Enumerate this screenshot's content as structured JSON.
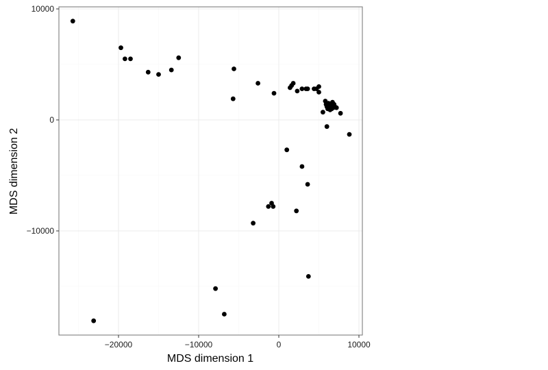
{
  "chart_data": {
    "type": "scatter",
    "title": "",
    "xlabel": "MDS dimension 1",
    "ylabel": "MDS dimension 2",
    "xlim": [
      -27000,
      10500
    ],
    "ylim": [
      -19500,
      10200
    ],
    "x_ticks": [
      -20000,
      -10000,
      0,
      10000
    ],
    "x_tick_labels": [
      "−20000",
      "−10000",
      "0",
      "10000"
    ],
    "y_ticks": [
      -10000,
      0,
      10000
    ],
    "y_tick_labels": [
      "−10000",
      "0",
      "10000"
    ],
    "grid": true,
    "legend": "none",
    "theme": "bw",
    "point_color": "#000000",
    "points": [
      [
        -25700,
        8900
      ],
      [
        -19700,
        6500
      ],
      [
        -19200,
        5500
      ],
      [
        -18500,
        5500
      ],
      [
        -16300,
        4300
      ],
      [
        -15000,
        4100
      ],
      [
        -13400,
        4500
      ],
      [
        -12500,
        5600
      ],
      [
        -5600,
        4600
      ],
      [
        -5700,
        1900
      ],
      [
        -2600,
        3300
      ],
      [
        -600,
        2400
      ],
      [
        1400,
        2900
      ],
      [
        1600,
        3100
      ],
      [
        1800,
        3300
      ],
      [
        2300,
        2600
      ],
      [
        2900,
        2800
      ],
      [
        3400,
        2800
      ],
      [
        3600,
        2800
      ],
      [
        4400,
        2800
      ],
      [
        4700,
        2800
      ],
      [
        5000,
        3000
      ],
      [
        5000,
        2500
      ],
      [
        5800,
        1700
      ],
      [
        5900,
        1400
      ],
      [
        6000,
        1200
      ],
      [
        6200,
        1500
      ],
      [
        6300,
        1100
      ],
      [
        6400,
        900
      ],
      [
        6500,
        1300
      ],
      [
        6700,
        1600
      ],
      [
        6800,
        1100
      ],
      [
        6900,
        1400
      ],
      [
        7000,
        1200
      ],
      [
        7200,
        1100
      ],
      [
        6100,
        1000
      ],
      [
        6600,
        1000
      ],
      [
        5500,
        700
      ],
      [
        7700,
        600
      ],
      [
        6000,
        -600
      ],
      [
        8800,
        -1300
      ],
      [
        1000,
        -2700
      ],
      [
        2900,
        -4200
      ],
      [
        3600,
        -5800
      ],
      [
        -1300,
        -7800
      ],
      [
        -900,
        -7500
      ],
      [
        -700,
        -7800
      ],
      [
        2200,
        -8200
      ],
      [
        -3200,
        -9300
      ],
      [
        3700,
        -14100
      ],
      [
        -7900,
        -15200
      ],
      [
        -6800,
        -17500
      ],
      [
        -23100,
        -18100
      ]
    ]
  }
}
